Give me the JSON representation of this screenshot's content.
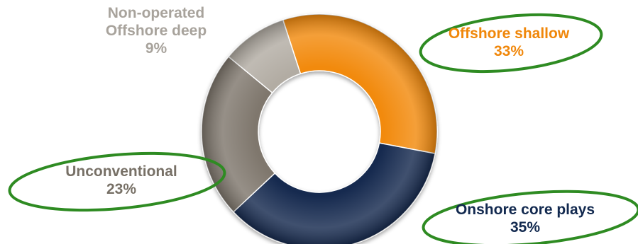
{
  "chart_data": {
    "type": "pie",
    "style": "donut",
    "title": "",
    "legend": "none",
    "categories": [
      "Offshore shallow",
      "Onshore core plays",
      "Unconventional",
      "Non-operated Offshore deep"
    ],
    "label_lines": [
      [
        "Offshore shallow"
      ],
      [
        "Onshore core plays"
      ],
      [
        "Unconventional"
      ],
      [
        "Non-operated",
        "Offshore deep"
      ]
    ],
    "values": [
      33,
      35,
      23,
      9
    ],
    "value_labels": [
      "33%",
      "35%",
      "23%",
      "9%"
    ],
    "colors": [
      "#f28a0f",
      "#12294f",
      "#7f776d",
      "#b2aca3"
    ],
    "label_colors": [
      "#f0870a",
      "#12294f",
      "#777066",
      "#a8a39c"
    ],
    "highlight_ring_color": "#2e8b22"
  }
}
